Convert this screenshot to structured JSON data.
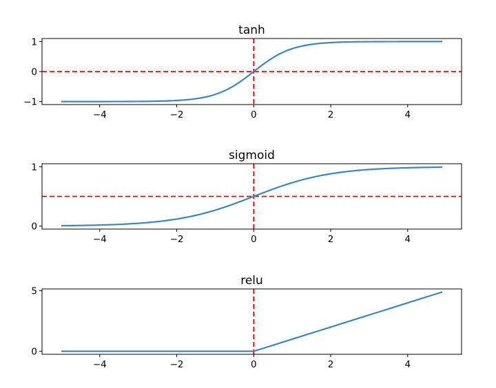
{
  "colors": {
    "curve": "#3a87c0",
    "reference": "#ff0000",
    "axes": "#000000"
  },
  "chart_data": [
    {
      "type": "line",
      "title": "tanh",
      "function": "tanh",
      "x_range": [
        -5,
        4.9
      ],
      "xlim": [
        -5.5,
        5.4
      ],
      "ylim": [
        -1.1,
        1.1
      ],
      "xticks": [
        -4,
        -2,
        0,
        2,
        4
      ],
      "xtick_labels": [
        "−4",
        "−2",
        "0",
        "2",
        "4"
      ],
      "yticks": [
        -1,
        0,
        1
      ],
      "ytick_labels": [
        "−1",
        "0",
        "1"
      ],
      "reference_lines": {
        "vertical_x": 0,
        "horizontal_y": 0
      },
      "grid": false
    },
    {
      "type": "line",
      "title": "sigmoid",
      "function": "sigmoid",
      "x_range": [
        -5,
        4.9
      ],
      "xlim": [
        -5.5,
        5.4
      ],
      "ylim": [
        -0.05,
        1.05
      ],
      "xticks": [
        -4,
        -2,
        0,
        2,
        4
      ],
      "xtick_labels": [
        "−4",
        "−2",
        "0",
        "2",
        "4"
      ],
      "yticks": [
        0,
        1
      ],
      "ytick_labels": [
        "0",
        "1"
      ],
      "reference_lines": {
        "vertical_x": 0,
        "horizontal_y": 0.5
      },
      "grid": false
    },
    {
      "type": "line",
      "title": "relu",
      "function": "relu",
      "x_range": [
        -5,
        4.9
      ],
      "xlim": [
        -5.5,
        5.4
      ],
      "ylim": [
        -0.25,
        5.15
      ],
      "xticks": [
        -4,
        -2,
        0,
        2,
        4
      ],
      "xtick_labels": [
        "−4",
        "−2",
        "0",
        "2",
        "4"
      ],
      "yticks": [
        0,
        5
      ],
      "ytick_labels": [
        "0",
        "5"
      ],
      "reference_lines": {
        "vertical_x": 0,
        "horizontal_y": null
      },
      "grid": false
    }
  ]
}
